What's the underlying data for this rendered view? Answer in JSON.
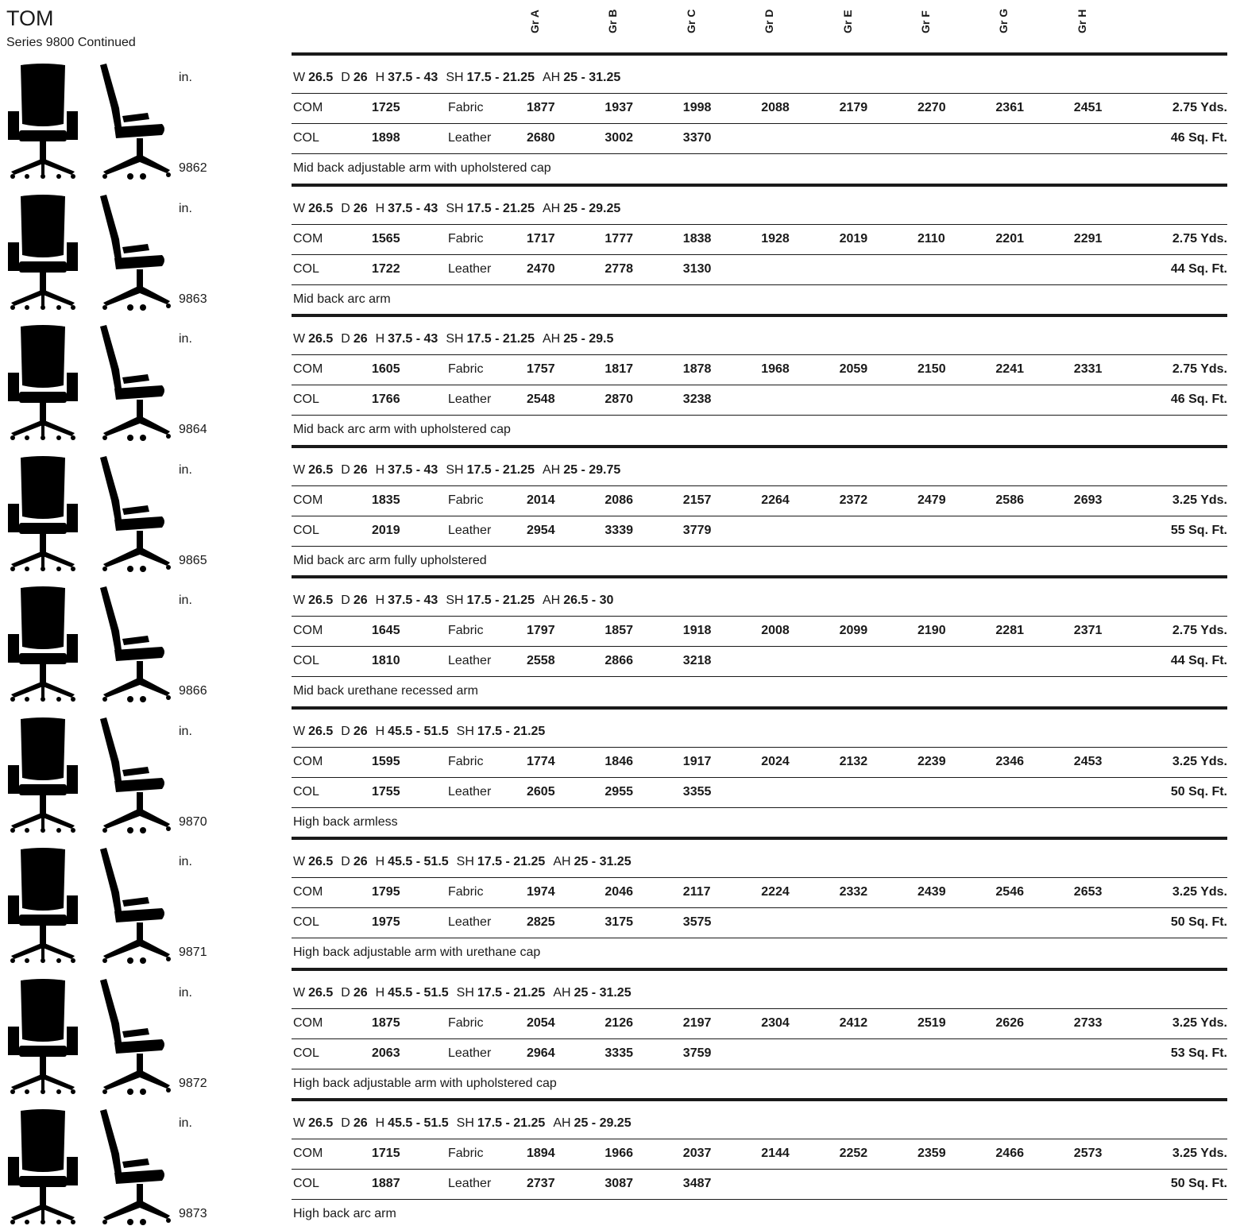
{
  "header": {
    "title": "TOM",
    "subtitle": "Series 9800 Continued",
    "grades": [
      "Gr A",
      "Gr B",
      "Gr C",
      "Gr D",
      "Gr E",
      "Gr F",
      "Gr G",
      "Gr H"
    ]
  },
  "products": [
    {
      "unit": "in.",
      "model": "9862",
      "dims": [
        {
          "label": "W",
          "value": "26.5"
        },
        {
          "label": "D",
          "value": "26"
        },
        {
          "label": "H",
          "value": "37.5 - 43"
        },
        {
          "label": "SH",
          "value": "17.5 - 21.25"
        },
        {
          "label": "AH",
          "value": "25 - 31.25"
        }
      ],
      "rows": [
        {
          "type": "COM",
          "base": 1725,
          "material": "Fabric",
          "prices": [
            1877,
            1937,
            1998,
            2088,
            2179,
            2270,
            2361,
            2451
          ],
          "qty": "2.75 Yds."
        },
        {
          "type": "COL",
          "base": 1898,
          "material": "Leather",
          "prices": [
            2680,
            3002,
            3370
          ],
          "qty": "46 Sq. Ft."
        }
      ],
      "description": "Mid back adjustable arm with upholstered cap"
    },
    {
      "unit": "in.",
      "model": "9863",
      "dims": [
        {
          "label": "W",
          "value": "26.5"
        },
        {
          "label": "D",
          "value": "26"
        },
        {
          "label": "H",
          "value": "37.5 - 43"
        },
        {
          "label": "SH",
          "value": "17.5 - 21.25"
        },
        {
          "label": "AH",
          "value": "25 - 29.25"
        }
      ],
      "rows": [
        {
          "type": "COM",
          "base": 1565,
          "material": "Fabric",
          "prices": [
            1717,
            1777,
            1838,
            1928,
            2019,
            2110,
            2201,
            2291
          ],
          "qty": "2.75 Yds."
        },
        {
          "type": "COL",
          "base": 1722,
          "material": "Leather",
          "prices": [
            2470,
            2778,
            3130
          ],
          "qty": "44 Sq. Ft."
        }
      ],
      "description": "Mid back arc arm"
    },
    {
      "unit": "in.",
      "model": "9864",
      "dims": [
        {
          "label": "W",
          "value": "26.5"
        },
        {
          "label": "D",
          "value": "26"
        },
        {
          "label": "H",
          "value": "37.5 - 43"
        },
        {
          "label": "SH",
          "value": "17.5 - 21.25"
        },
        {
          "label": "AH",
          "value": "25 - 29.5"
        }
      ],
      "rows": [
        {
          "type": "COM",
          "base": 1605,
          "material": "Fabric",
          "prices": [
            1757,
            1817,
            1878,
            1968,
            2059,
            2150,
            2241,
            2331
          ],
          "qty": "2.75 Yds."
        },
        {
          "type": "COL",
          "base": 1766,
          "material": "Leather",
          "prices": [
            2548,
            2870,
            3238
          ],
          "qty": "46 Sq. Ft."
        }
      ],
      "description": "Mid back arc arm with upholstered cap"
    },
    {
      "unit": "in.",
      "model": "9865",
      "dims": [
        {
          "label": "W",
          "value": "26.5"
        },
        {
          "label": "D",
          "value": "26"
        },
        {
          "label": "H",
          "value": "37.5 - 43"
        },
        {
          "label": "SH",
          "value": "17.5 - 21.25"
        },
        {
          "label": "AH",
          "value": "25 - 29.75"
        }
      ],
      "rows": [
        {
          "type": "COM",
          "base": 1835,
          "material": "Fabric",
          "prices": [
            2014,
            2086,
            2157,
            2264,
            2372,
            2479,
            2586,
            2693
          ],
          "qty": "3.25 Yds."
        },
        {
          "type": "COL",
          "base": 2019,
          "material": "Leather",
          "prices": [
            2954,
            3339,
            3779
          ],
          "qty": "55 Sq. Ft."
        }
      ],
      "description": "Mid back arc arm fully upholstered"
    },
    {
      "unit": "in.",
      "model": "9866",
      "dims": [
        {
          "label": "W",
          "value": "26.5"
        },
        {
          "label": "D",
          "value": "26"
        },
        {
          "label": "H",
          "value": "37.5 - 43"
        },
        {
          "label": "SH",
          "value": "17.5 - 21.25"
        },
        {
          "label": "AH",
          "value": "26.5 - 30"
        }
      ],
      "rows": [
        {
          "type": "COM",
          "base": 1645,
          "material": "Fabric",
          "prices": [
            1797,
            1857,
            1918,
            2008,
            2099,
            2190,
            2281,
            2371
          ],
          "qty": "2.75 Yds."
        },
        {
          "type": "COL",
          "base": 1810,
          "material": "Leather",
          "prices": [
            2558,
            2866,
            3218
          ],
          "qty": "44 Sq. Ft."
        }
      ],
      "description": "Mid back urethane recessed arm"
    },
    {
      "unit": "in.",
      "model": "9870",
      "dims": [
        {
          "label": "W",
          "value": "26.5"
        },
        {
          "label": "D",
          "value": "26"
        },
        {
          "label": "H",
          "value": "45.5 - 51.5"
        },
        {
          "label": "SH",
          "value": "17.5 - 21.25"
        }
      ],
      "rows": [
        {
          "type": "COM",
          "base": 1595,
          "material": "Fabric",
          "prices": [
            1774,
            1846,
            1917,
            2024,
            2132,
            2239,
            2346,
            2453
          ],
          "qty": "3.25 Yds."
        },
        {
          "type": "COL",
          "base": 1755,
          "material": "Leather",
          "prices": [
            2605,
            2955,
            3355
          ],
          "qty": "50 Sq. Ft."
        }
      ],
      "description": "High back armless"
    },
    {
      "unit": "in.",
      "model": "9871",
      "dims": [
        {
          "label": "W",
          "value": "26.5"
        },
        {
          "label": "D",
          "value": "26"
        },
        {
          "label": "H",
          "value": "45.5 - 51.5"
        },
        {
          "label": "SH",
          "value": "17.5 - 21.25"
        },
        {
          "label": "AH",
          "value": "25 - 31.25"
        }
      ],
      "rows": [
        {
          "type": "COM",
          "base": 1795,
          "material": "Fabric",
          "prices": [
            1974,
            2046,
            2117,
            2224,
            2332,
            2439,
            2546,
            2653
          ],
          "qty": "3.25 Yds."
        },
        {
          "type": "COL",
          "base": 1975,
          "material": "Leather",
          "prices": [
            2825,
            3175,
            3575
          ],
          "qty": "50 Sq. Ft."
        }
      ],
      "description": "High back adjustable arm with urethane cap"
    },
    {
      "unit": "in.",
      "model": "9872",
      "dims": [
        {
          "label": "W",
          "value": "26.5"
        },
        {
          "label": "D",
          "value": "26"
        },
        {
          "label": "H",
          "value": "45.5 - 51.5"
        },
        {
          "label": "SH",
          "value": "17.5 - 21.25"
        },
        {
          "label": "AH",
          "value": "25 - 31.25"
        }
      ],
      "rows": [
        {
          "type": "COM",
          "base": 1875,
          "material": "Fabric",
          "prices": [
            2054,
            2126,
            2197,
            2304,
            2412,
            2519,
            2626,
            2733
          ],
          "qty": "3.25 Yds."
        },
        {
          "type": "COL",
          "base": 2063,
          "material": "Leather",
          "prices": [
            2964,
            3335,
            3759
          ],
          "qty": "53 Sq. Ft."
        }
      ],
      "description": "High back adjustable arm with upholstered cap"
    },
    {
      "unit": "in.",
      "model": "9873",
      "dims": [
        {
          "label": "W",
          "value": "26.5"
        },
        {
          "label": "D",
          "value": "26"
        },
        {
          "label": "H",
          "value": "45.5 - 51.5"
        },
        {
          "label": "SH",
          "value": "17.5 - 21.25"
        },
        {
          "label": "AH",
          "value": "25 - 29.25"
        }
      ],
      "rows": [
        {
          "type": "COM",
          "base": 1715,
          "material": "Fabric",
          "prices": [
            1894,
            1966,
            2037,
            2144,
            2252,
            2359,
            2466,
            2573
          ],
          "qty": "3.25 Yds."
        },
        {
          "type": "COL",
          "base": 1887,
          "material": "Leather",
          "prices": [
            2737,
            3087,
            3487
          ],
          "qty": "50 Sq. Ft."
        }
      ],
      "description": "High back arc arm"
    }
  ]
}
